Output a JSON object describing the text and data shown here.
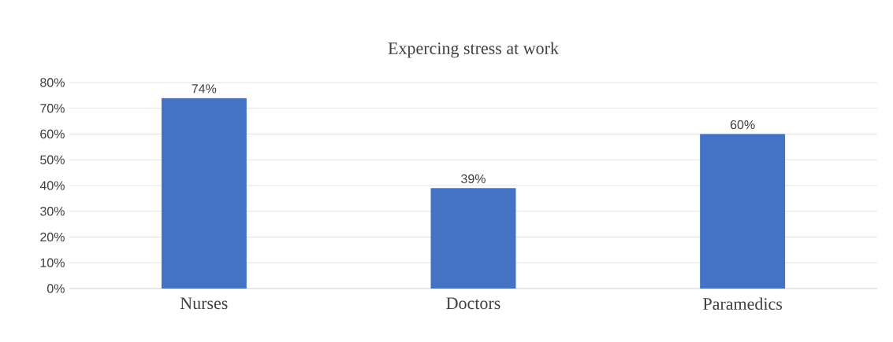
{
  "chart_data": {
    "type": "bar",
    "title": "Expercing stress at work",
    "categories": [
      "Nurses",
      "Doctors",
      "Paramedics"
    ],
    "values": [
      74,
      39,
      60
    ],
    "color": "#4472c4",
    "value_labels": [
      "74%",
      "39%",
      "60%"
    ],
    "ylim": [
      0,
      80
    ],
    "yticks": [
      {
        "value": 0,
        "label": "0%"
      },
      {
        "value": 10,
        "label": "10%"
      },
      {
        "value": 20,
        "label": "20%"
      },
      {
        "value": 30,
        "label": "30%"
      },
      {
        "value": 40,
        "label": "40%"
      },
      {
        "value": 50,
        "label": "50%"
      },
      {
        "value": 60,
        "label": "60%"
      },
      {
        "value": 70,
        "label": "70%"
      },
      {
        "value": 80,
        "label": "80%"
      }
    ],
    "grid": "y"
  }
}
